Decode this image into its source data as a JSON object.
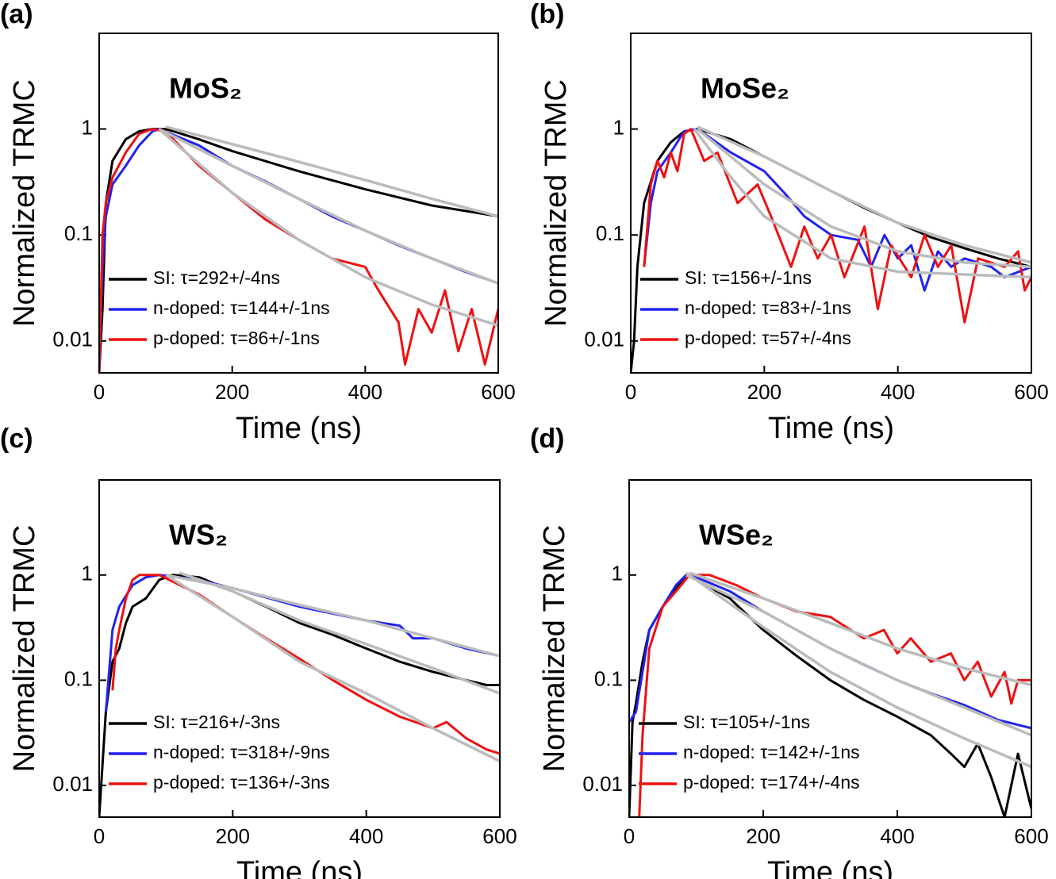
{
  "chart_data": [
    {
      "type": "line",
      "panel_label": "(a)",
      "title": "MoS₂",
      "xlabel": "Time (ns)",
      "ylabel": "Normalized TRMC",
      "xlim": [
        0,
        600
      ],
      "ylim": [
        0.005,
        8
      ],
      "xticks": [
        0,
        200,
        400,
        600
      ],
      "yticks": [
        0.01,
        0.1,
        1
      ],
      "log_y": true,
      "legend": "lower left",
      "series": [
        {
          "name": "SI: τ=292+/-4ns",
          "color": "#000000",
          "x": [
            0,
            5,
            10,
            20,
            40,
            60,
            80,
            100,
            150,
            200,
            300,
            400,
            500,
            600
          ],
          "values": [
            0.005,
            0.02,
            0.2,
            0.5,
            0.8,
            0.95,
            1.0,
            1.0,
            0.8,
            0.62,
            0.4,
            0.27,
            0.19,
            0.15
          ]
        },
        {
          "name": "n-doped: τ=144+/-1ns",
          "color": "#2222ee",
          "x": [
            0,
            5,
            10,
            20,
            40,
            60,
            80,
            90,
            150,
            200,
            250,
            300,
            350,
            400,
            450,
            500,
            550,
            600
          ],
          "values": [
            0.005,
            0.05,
            0.15,
            0.3,
            0.45,
            0.7,
            0.95,
            1.0,
            0.7,
            0.45,
            0.32,
            0.22,
            0.15,
            0.11,
            0.08,
            0.06,
            0.045,
            0.035
          ]
        },
        {
          "name": "p-doped: τ=86+/-1ns",
          "color": "#ee1111",
          "x": [
            0,
            5,
            10,
            20,
            40,
            60,
            80,
            100,
            150,
            200,
            250,
            300,
            350,
            400,
            420,
            450,
            460,
            480,
            500,
            520,
            540,
            560,
            580,
            600
          ],
          "values": [
            0.005,
            0.1,
            0.2,
            0.35,
            0.6,
            0.9,
            1.0,
            0.95,
            0.45,
            0.25,
            0.14,
            0.09,
            0.06,
            0.05,
            0.03,
            0.015,
            0.006,
            0.02,
            0.012,
            0.03,
            0.008,
            0.02,
            0.006,
            0.02
          ]
        },
        {
          "color": "#bbbbbb",
          "x": [
            100,
            200,
            300,
            400,
            500,
            600
          ],
          "values": [
            1.05,
            0.72,
            0.49,
            0.33,
            0.22,
            0.15
          ]
        },
        {
          "color": "#bbbbbb",
          "x": [
            90,
            200,
            300,
            400,
            500,
            600
          ],
          "values": [
            1.0,
            0.45,
            0.22,
            0.11,
            0.06,
            0.035
          ]
        },
        {
          "color": "#bbbbbb",
          "x": [
            90,
            200,
            300,
            400,
            500,
            600
          ],
          "values": [
            1.0,
            0.25,
            0.09,
            0.04,
            0.022,
            0.014
          ]
        }
      ]
    },
    {
      "type": "line",
      "panel_label": "(b)",
      "title": "MoSe₂",
      "xlabel": "Time (ns)",
      "ylabel": "Normalized TRMC",
      "xlim": [
        0,
        600
      ],
      "ylim": [
        0.005,
        8
      ],
      "xticks": [
        0,
        200,
        400,
        600
      ],
      "yticks": [
        0.01,
        0.1,
        1
      ],
      "log_y": true,
      "legend": "lower left",
      "series": [
        {
          "name": "SI: τ=156+/-1ns",
          "color": "#000000",
          "x": [
            0,
            5,
            10,
            20,
            40,
            60,
            80,
            100,
            150,
            200,
            250,
            300,
            350,
            400,
            450,
            500,
            550,
            600
          ],
          "values": [
            0.005,
            0.01,
            0.05,
            0.2,
            0.5,
            0.75,
            0.95,
            1.0,
            0.8,
            0.55,
            0.38,
            0.26,
            0.18,
            0.13,
            0.095,
            0.075,
            0.06,
            0.05
          ]
        },
        {
          "name": "n-doped: τ=83+/-1ns",
          "color": "#2222ee",
          "x": [
            20,
            30,
            40,
            60,
            80,
            100,
            150,
            200,
            230,
            260,
            300,
            340,
            360,
            380,
            400,
            420,
            440,
            460,
            480,
            500,
            540,
            560,
            600
          ],
          "values": [
            0.05,
            0.2,
            0.4,
            0.6,
            0.95,
            1.0,
            0.6,
            0.4,
            0.25,
            0.15,
            0.1,
            0.09,
            0.05,
            0.1,
            0.06,
            0.08,
            0.03,
            0.07,
            0.05,
            0.06,
            0.05,
            0.04,
            0.05
          ]
        },
        {
          "name": "p-doped: τ=57+/-4ns",
          "color": "#ee1111",
          "x": [
            20,
            30,
            40,
            50,
            60,
            70,
            80,
            90,
            110,
            130,
            160,
            190,
            210,
            240,
            260,
            280,
            300,
            320,
            350,
            370,
            390,
            420,
            440,
            460,
            480,
            500,
            520,
            560,
            580,
            590,
            600
          ],
          "values": [
            0.05,
            0.3,
            0.5,
            0.35,
            0.6,
            0.4,
            0.9,
            1.0,
            0.5,
            0.6,
            0.2,
            0.3,
            0.15,
            0.05,
            0.12,
            0.06,
            0.1,
            0.04,
            0.12,
            0.02,
            0.08,
            0.04,
            0.1,
            0.05,
            0.08,
            0.015,
            0.06,
            0.05,
            0.07,
            0.03,
            0.04
          ]
        },
        {
          "color": "#bbbbbb",
          "x": [
            100,
            200,
            300,
            400,
            500,
            600
          ],
          "values": [
            1.05,
            0.55,
            0.26,
            0.13,
            0.08,
            0.055
          ]
        },
        {
          "color": "#bbbbbb",
          "x": [
            100,
            200,
            300,
            400,
            500,
            600
          ],
          "values": [
            1.0,
            0.3,
            0.12,
            0.07,
            0.055,
            0.05
          ]
        },
        {
          "color": "#bbbbbb",
          "x": [
            95,
            150,
            200,
            300,
            400,
            600
          ],
          "values": [
            1.0,
            0.35,
            0.15,
            0.06,
            0.045,
            0.04
          ]
        }
      ]
    },
    {
      "type": "line",
      "panel_label": "(c)",
      "title": "WS₂",
      "xlabel": "Time (ns)",
      "ylabel": "Normalized TRMC",
      "xlim": [
        0,
        600
      ],
      "ylim": [
        0.005,
        8
      ],
      "xticks": [
        0,
        200,
        400,
        600
      ],
      "yticks": [
        0.01,
        0.1,
        1
      ],
      "log_y": true,
      "legend": "lower left",
      "series": [
        {
          "name": "SI: τ=216+/-3ns",
          "color": "#000000",
          "x": [
            0,
            10,
            20,
            30,
            40,
            50,
            70,
            90,
            110,
            150,
            200,
            250,
            300,
            350,
            400,
            450,
            500,
            550,
            580,
            600
          ],
          "values": [
            0.005,
            0.05,
            0.15,
            0.2,
            0.35,
            0.5,
            0.6,
            0.9,
            1.0,
            0.95,
            0.7,
            0.5,
            0.35,
            0.27,
            0.2,
            0.15,
            0.12,
            0.1,
            0.09,
            0.09
          ]
        },
        {
          "name": "n-doped: τ=318+/-9ns",
          "color": "#2222ee",
          "x": [
            10,
            20,
            30,
            50,
            70,
            90,
            150,
            200,
            300,
            400,
            450,
            470,
            500,
            550,
            600
          ],
          "values": [
            0.05,
            0.3,
            0.5,
            0.8,
            0.95,
            1.0,
            0.9,
            0.75,
            0.5,
            0.37,
            0.33,
            0.25,
            0.25,
            0.2,
            0.17
          ]
        },
        {
          "name": "p-doped: τ=136+/-3ns",
          "color": "#ee1111",
          "x": [
            20,
            25,
            30,
            40,
            50,
            60,
            90,
            150,
            200,
            250,
            300,
            350,
            400,
            450,
            500,
            520,
            550,
            580,
            600
          ],
          "values": [
            0.08,
            0.2,
            0.3,
            0.6,
            0.9,
            1.0,
            1.0,
            0.65,
            0.4,
            0.25,
            0.16,
            0.1,
            0.065,
            0.045,
            0.035,
            0.04,
            0.028,
            0.022,
            0.02
          ]
        },
        {
          "color": "#bbbbbb",
          "x": [
            120,
            200,
            300,
            400,
            500,
            600
          ],
          "values": [
            1.05,
            0.7,
            0.37,
            0.22,
            0.13,
            0.075
          ]
        },
        {
          "color": "#bbbbbb",
          "x": [
            100,
            200,
            300,
            400,
            500,
            600
          ],
          "values": [
            1.0,
            0.75,
            0.52,
            0.37,
            0.25,
            0.17
          ]
        },
        {
          "color": "#bbbbbb",
          "x": [
            100,
            200,
            300,
            400,
            500,
            600
          ],
          "values": [
            1.0,
            0.4,
            0.15,
            0.075,
            0.035,
            0.017
          ]
        }
      ]
    },
    {
      "type": "line",
      "panel_label": "(d)",
      "title": "WSe₂",
      "xlabel": "Time (ns)",
      "ylabel": "Normalized TRMC",
      "xlim": [
        0,
        600
      ],
      "ylim": [
        0.005,
        8
      ],
      "xticks": [
        0,
        200,
        400,
        600
      ],
      "yticks": [
        0.01,
        0.1,
        1
      ],
      "log_y": true,
      "legend": "lower left",
      "series": [
        {
          "name": "SI: τ=105+/-1ns",
          "color": "#000000",
          "x": [
            0,
            5,
            10,
            20,
            30,
            50,
            70,
            85,
            100,
            150,
            200,
            250,
            300,
            350,
            400,
            450,
            480,
            500,
            520,
            540,
            560,
            580,
            600
          ],
          "values": [
            0.005,
            0.04,
            0.06,
            0.15,
            0.3,
            0.5,
            0.75,
            1.0,
            0.9,
            0.6,
            0.3,
            0.17,
            0.1,
            0.065,
            0.045,
            0.03,
            0.02,
            0.015,
            0.025,
            0.012,
            0.005,
            0.02,
            0.006
          ]
        },
        {
          "name": "n-doped: τ=142+/-1ns",
          "color": "#2222ee",
          "x": [
            0,
            10,
            20,
            30,
            50,
            70,
            85,
            100,
            150,
            200,
            250,
            300,
            350,
            400,
            450,
            500,
            550,
            600
          ],
          "values": [
            0.04,
            0.05,
            0.12,
            0.3,
            0.5,
            0.8,
            1.0,
            0.95,
            0.7,
            0.45,
            0.3,
            0.2,
            0.14,
            0.1,
            0.075,
            0.058,
            0.042,
            0.035
          ]
        },
        {
          "name": "p-doped: τ=174+/-4ns",
          "color": "#ee1111",
          "x": [
            15,
            20,
            30,
            50,
            70,
            90,
            120,
            160,
            200,
            250,
            300,
            350,
            380,
            400,
            420,
            450,
            480,
            500,
            520,
            540,
            560,
            570,
            580,
            600
          ],
          "values": [
            0.005,
            0.03,
            0.2,
            0.5,
            0.7,
            1.0,
            1.0,
            0.8,
            0.6,
            0.45,
            0.4,
            0.25,
            0.3,
            0.18,
            0.25,
            0.15,
            0.18,
            0.1,
            0.15,
            0.07,
            0.12,
            0.06,
            0.1,
            0.1
          ]
        },
        {
          "color": "#bbbbbb",
          "x": [
            85,
            200,
            300,
            400,
            500,
            600
          ],
          "values": [
            1.05,
            0.32,
            0.12,
            0.055,
            0.028,
            0.015
          ]
        },
        {
          "color": "#bbbbbb",
          "x": [
            85,
            200,
            300,
            400,
            500,
            600
          ],
          "values": [
            1.0,
            0.45,
            0.2,
            0.1,
            0.055,
            0.03
          ]
        },
        {
          "color": "#bbbbbb",
          "x": [
            90,
            200,
            300,
            400,
            500,
            600
          ],
          "values": [
            1.05,
            0.6,
            0.35,
            0.2,
            0.13,
            0.09
          ]
        }
      ]
    }
  ]
}
